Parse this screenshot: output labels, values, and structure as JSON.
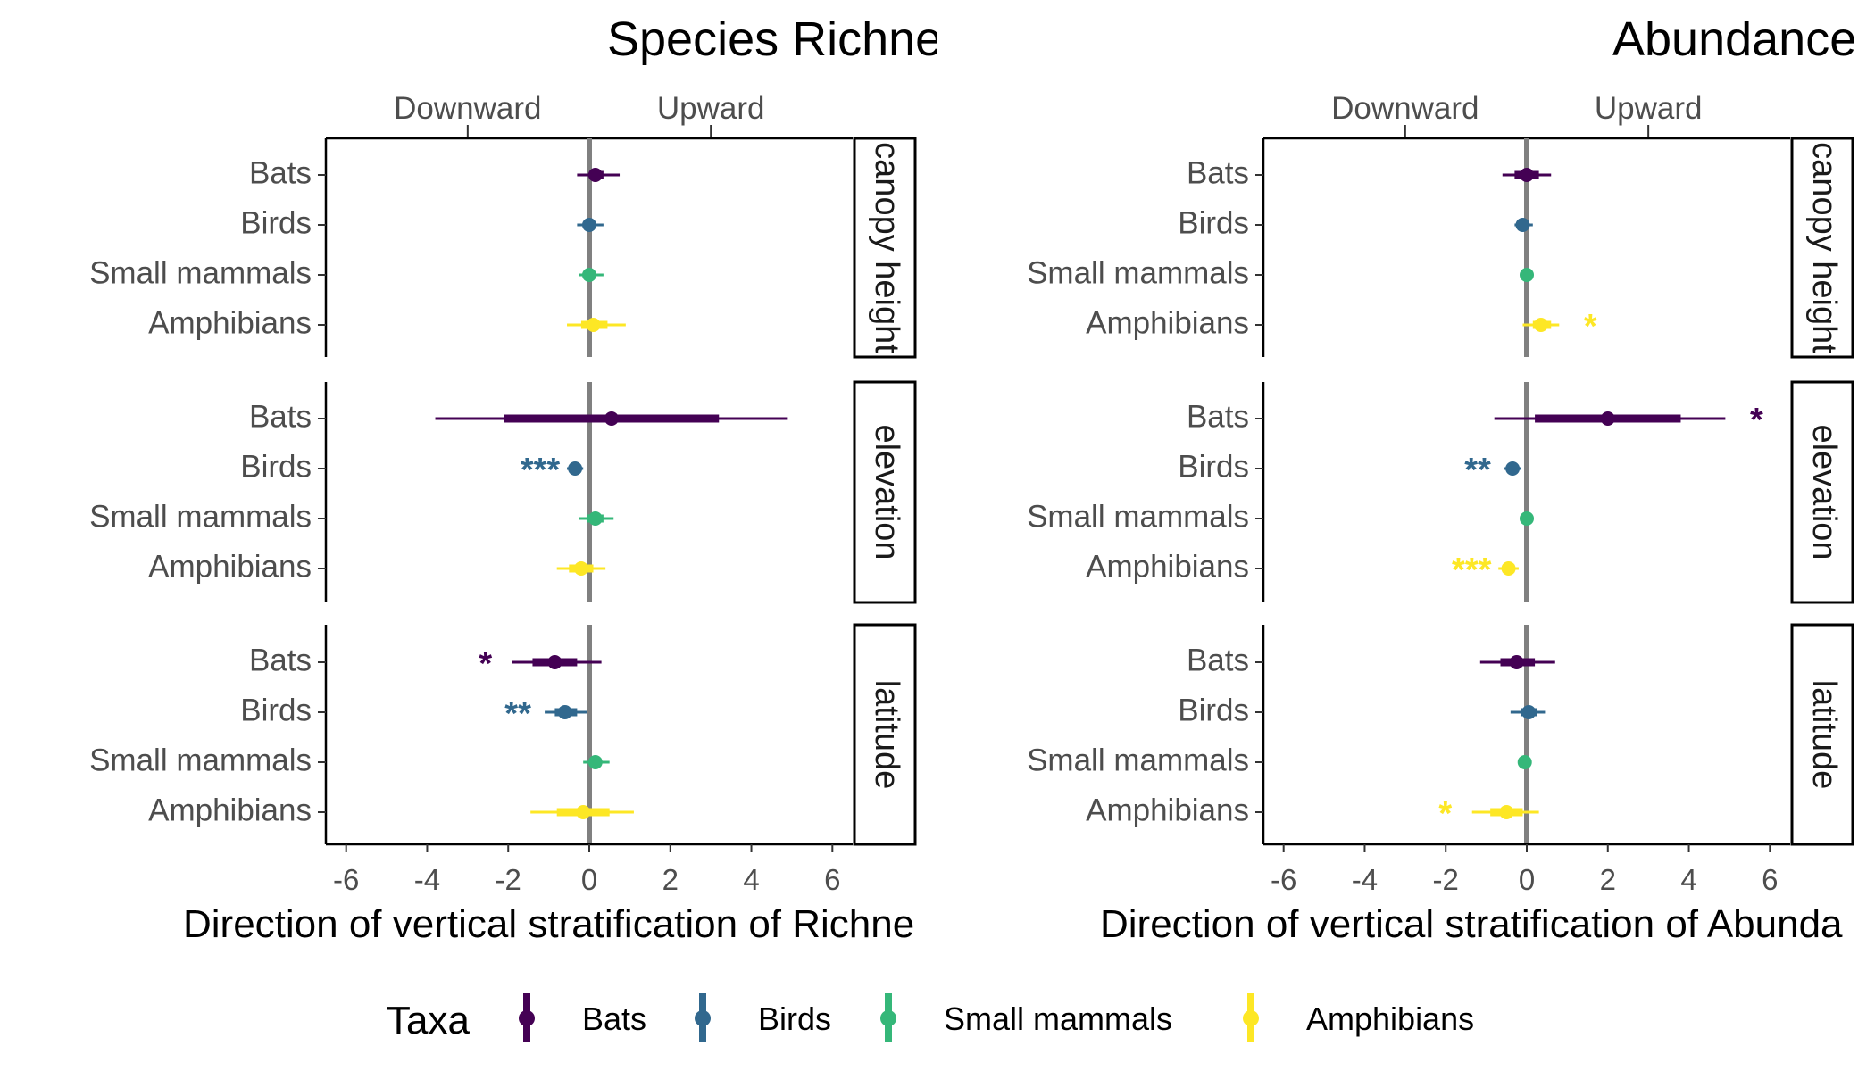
{
  "chart_data": {
    "type": "forest",
    "taxa": [
      "Bats",
      "Birds",
      "Small mammals",
      "Amphibians"
    ],
    "colors": {
      "Bats": "#440154",
      "Birds": "#31688E",
      "Small mammals": "#35B779",
      "Amphibians": "#FDE725"
    },
    "facets": [
      "canopy height",
      "elevation",
      "latitude"
    ],
    "xlim": [
      -6.5,
      6.5
    ],
    "xticks": [
      -6,
      -4,
      -2,
      0,
      2,
      4,
      6
    ],
    "xtick_labels": [
      "-6",
      "-4",
      "-2",
      "0",
      "2",
      "4",
      "6"
    ],
    "direction_labels": [
      "Downward",
      "Upward"
    ],
    "direction_ticks": [
      -3,
      3
    ],
    "panels": [
      {
        "title": "Species Richne",
        "xlabel": "Direction of vertical stratification of Richne",
        "rows": {
          "canopy height": [
            {
              "taxon": "Bats",
              "est": 0.15,
              "lo95": -0.3,
              "hi95": 0.75,
              "lo50": 0.0,
              "hi50": 0.35,
              "sig": ""
            },
            {
              "taxon": "Birds",
              "est": 0.0,
              "lo95": -0.3,
              "hi95": 0.35,
              "lo50": -0.1,
              "hi50": 0.12,
              "sig": ""
            },
            {
              "taxon": "Small mammals",
              "est": 0.0,
              "lo95": -0.25,
              "hi95": 0.35,
              "lo50": -0.1,
              "hi50": 0.12,
              "sig": ""
            },
            {
              "taxon": "Amphibians",
              "est": 0.1,
              "lo95": -0.55,
              "hi95": 0.9,
              "lo50": -0.2,
              "hi50": 0.45,
              "sig": ""
            }
          ],
          "elevation": [
            {
              "taxon": "Bats",
              "est": 0.55,
              "lo95": -3.8,
              "hi95": 4.9,
              "lo50": -2.1,
              "hi50": 3.2,
              "sig": ""
            },
            {
              "taxon": "Birds",
              "est": -0.35,
              "lo95": -0.55,
              "hi95": -0.15,
              "lo50": -0.45,
              "hi50": -0.25,
              "sig": "***"
            },
            {
              "taxon": "Small mammals",
              "est": 0.15,
              "lo95": -0.25,
              "hi95": 0.6,
              "lo50": -0.05,
              "hi50": 0.35,
              "sig": ""
            },
            {
              "taxon": "Amphibians",
              "est": -0.2,
              "lo95": -0.8,
              "hi95": 0.4,
              "lo50": -0.5,
              "hi50": 0.1,
              "sig": ""
            }
          ],
          "latitude": [
            {
              "taxon": "Bats",
              "est": -0.85,
              "lo95": -1.9,
              "hi95": 0.3,
              "lo50": -1.4,
              "hi50": -0.3,
              "sig": "*"
            },
            {
              "taxon": "Birds",
              "est": -0.6,
              "lo95": -1.1,
              "hi95": -0.05,
              "lo50": -0.85,
              "hi50": -0.3,
              "sig": "**"
            },
            {
              "taxon": "Small mammals",
              "est": 0.15,
              "lo95": -0.15,
              "hi95": 0.5,
              "lo50": 0.0,
              "hi50": 0.3,
              "sig": ""
            },
            {
              "taxon": "Amphibians",
              "est": -0.15,
              "lo95": -1.45,
              "hi95": 1.1,
              "lo50": -0.8,
              "hi50": 0.5,
              "sig": ""
            }
          ]
        }
      },
      {
        "title": "Abundance",
        "xlabel": "Direction of vertical stratification of Abunda",
        "rows": {
          "canopy height": [
            {
              "taxon": "Bats",
              "est": 0.0,
              "lo95": -0.6,
              "hi95": 0.6,
              "lo50": -0.3,
              "hi50": 0.3,
              "sig": ""
            },
            {
              "taxon": "Birds",
              "est": -0.1,
              "lo95": -0.3,
              "hi95": 0.15,
              "lo50": -0.2,
              "hi50": 0.05,
              "sig": ""
            },
            {
              "taxon": "Small mammals",
              "est": 0.0,
              "lo95": -0.1,
              "hi95": 0.1,
              "lo50": -0.05,
              "hi50": 0.05,
              "sig": ""
            },
            {
              "taxon": "Amphibians",
              "est": 0.35,
              "lo95": -0.1,
              "hi95": 0.8,
              "lo50": 0.15,
              "hi50": 0.6,
              "sig": "*"
            }
          ],
          "elevation": [
            {
              "taxon": "Bats",
              "est": 2.0,
              "lo95": -0.8,
              "hi95": 4.9,
              "lo50": 0.2,
              "hi50": 3.8,
              "sig": "*"
            },
            {
              "taxon": "Birds",
              "est": -0.35,
              "lo95": -0.55,
              "hi95": -0.15,
              "lo50": -0.45,
              "hi50": -0.25,
              "sig": "**"
            },
            {
              "taxon": "Small mammals",
              "est": 0.0,
              "lo95": -0.1,
              "hi95": 0.1,
              "lo50": -0.05,
              "hi50": 0.05,
              "sig": ""
            },
            {
              "taxon": "Amphibians",
              "est": -0.45,
              "lo95": -0.7,
              "hi95": -0.2,
              "lo50": -0.55,
              "hi50": -0.3,
              "sig": "***"
            }
          ],
          "latitude": [
            {
              "taxon": "Bats",
              "est": -0.25,
              "lo95": -1.15,
              "hi95": 0.7,
              "lo50": -0.65,
              "hi50": 0.2,
              "sig": ""
            },
            {
              "taxon": "Birds",
              "est": 0.05,
              "lo95": -0.4,
              "hi95": 0.45,
              "lo50": -0.15,
              "hi50": 0.25,
              "sig": ""
            },
            {
              "taxon": "Small mammals",
              "est": -0.05,
              "lo95": -0.15,
              "hi95": 0.05,
              "lo50": -0.1,
              "hi50": 0.0,
              "sig": ""
            },
            {
              "taxon": "Amphibians",
              "est": -0.5,
              "lo95": -1.35,
              "hi95": 0.3,
              "lo50": -0.9,
              "hi50": -0.1,
              "sig": "*"
            }
          ]
        }
      }
    ],
    "legend": {
      "title": "Taxa",
      "position": "bottom",
      "items": [
        "Bats",
        "Birds",
        "Small mammals",
        "Amphibians"
      ]
    }
  }
}
